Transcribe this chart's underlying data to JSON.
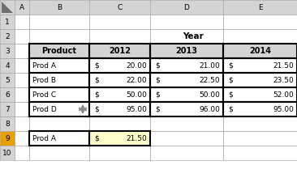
{
  "col_headers": [
    "A",
    "B",
    "C",
    "D",
    "E"
  ],
  "row_numbers": [
    "1",
    "2",
    "3",
    "4",
    "5",
    "6",
    "7",
    "8",
    "9",
    "10"
  ],
  "table_header_row": [
    "Product",
    "2012",
    "2013",
    "2014"
  ],
  "table_data": [
    [
      "Prod A",
      "20.00",
      "21.00",
      "21.50"
    ],
    [
      "Prod B",
      "22.00",
      "22.50",
      "23.50"
    ],
    [
      "Prod C",
      "50.00",
      "50.00",
      "52.00"
    ],
    [
      "Prod D",
      "95.00",
      "96.00",
      "95.00"
    ]
  ],
  "year_label": "Year",
  "bg_color": "#ffffff",
  "header_bg": "#d4d4d4",
  "cell_bg": "#ffffff",
  "result_bg": "#ffffcc",
  "row9_highlight": "#f5c842",
  "grid_color": "#b0b0b0",
  "border_color": "#000000",
  "col_header_bg": "#d4d4d4",
  "row9_num_bg": "#e8a000"
}
